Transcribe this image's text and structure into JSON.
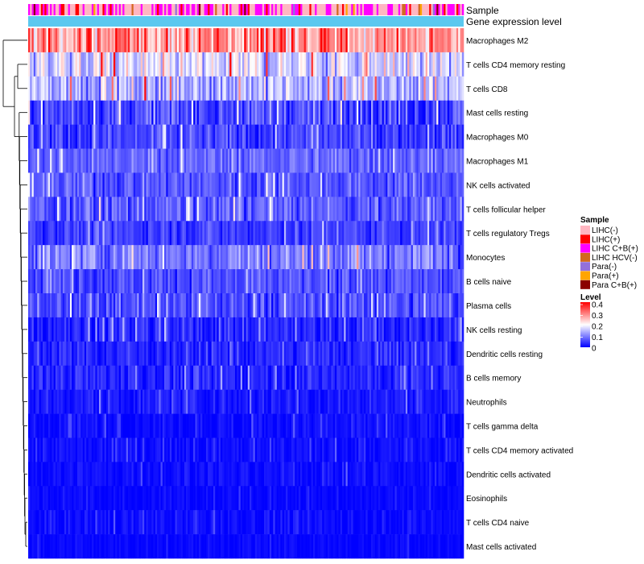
{
  "chart_data": {
    "type": "heatmap",
    "annotation_labels": {
      "sample": "Sample",
      "gene": "Gene expression level"
    },
    "rows": [
      {
        "name": "Macrophages M2",
        "mean": 0.28,
        "spread": 0.13
      },
      {
        "name": "T cells CD4 memory resting",
        "mean": 0.17,
        "spread": 0.12
      },
      {
        "name": "T cells CD8",
        "mean": 0.14,
        "spread": 0.11
      },
      {
        "name": "Mast cells resting",
        "mean": 0.06,
        "spread": 0.09
      },
      {
        "name": "Macrophages M0",
        "mean": 0.05,
        "spread": 0.07
      },
      {
        "name": "Macrophages M1",
        "mean": 0.08,
        "spread": 0.06
      },
      {
        "name": "NK cells activated",
        "mean": 0.07,
        "spread": 0.07
      },
      {
        "name": "T cells follicular helper",
        "mean": 0.07,
        "spread": 0.07
      },
      {
        "name": "T cells regulatory  Tregs",
        "mean": 0.05,
        "spread": 0.06
      },
      {
        "name": "Monocytes",
        "mean": 0.1,
        "spread": 0.09
      },
      {
        "name": "B cells naive",
        "mean": 0.06,
        "spread": 0.06
      },
      {
        "name": "Plasma cells",
        "mean": 0.06,
        "spread": 0.07
      },
      {
        "name": "NK cells resting",
        "mean": 0.03,
        "spread": 0.06
      },
      {
        "name": "Dendritic cells resting",
        "mean": 0.03,
        "spread": 0.05
      },
      {
        "name": "B cells memory",
        "mean": 0.03,
        "spread": 0.05
      },
      {
        "name": "Neutrophils",
        "mean": 0.02,
        "spread": 0.04
      },
      {
        "name": "T cells gamma delta",
        "mean": 0.01,
        "spread": 0.03
      },
      {
        "name": "T cells CD4 memory activated",
        "mean": 0.01,
        "spread": 0.03
      },
      {
        "name": "Dendritic cells activated",
        "mean": 0.01,
        "spread": 0.03
      },
      {
        "name": "Eosinophils",
        "mean": 0.005,
        "spread": 0.02
      },
      {
        "name": "T cells CD4 naive",
        "mean": 0.01,
        "spread": 0.03
      },
      {
        "name": "Mast cells activated",
        "mean": 0.005,
        "spread": 0.02
      }
    ],
    "columns_count": 240,
    "sample_legend": {
      "title": "Sample",
      "items": [
        {
          "label": "LIHC(-)",
          "color": "#FFB6C1"
        },
        {
          "label": "LIHC(+)",
          "color": "#FF0000"
        },
        {
          "label": "LIHC C+B(+)",
          "color": "#FF00FF"
        },
        {
          "label": "LIHC HCV(-)",
          "color": "#D2691E"
        },
        {
          "label": "Para(-)",
          "color": "#9370DB"
        },
        {
          "label": "Para(+)",
          "color": "#FFA500"
        },
        {
          "label": "Para C+B(+)",
          "color": "#8B0000"
        }
      ]
    },
    "level_legend": {
      "title": "Level",
      "ticks": [
        "0.4",
        "0.3",
        "0.2",
        "0.1",
        "0"
      ],
      "min": 0,
      "max": 0.4
    },
    "gene_bar_color": "#5BC8EF",
    "color_scale": {
      "low": "#0000FF",
      "mid": "#FFFFFF",
      "high": "#FF0000"
    },
    "sample_mix": {
      "LIHC(-)": 0.5,
      "LIHC C+B(+)": 0.32,
      "LIHC(+)": 0.1,
      "LIHC HCV(-)": 0.03,
      "Para(-)": 0.02,
      "Para(+)": 0.02,
      "Para C+B(+)": 0.01
    }
  }
}
